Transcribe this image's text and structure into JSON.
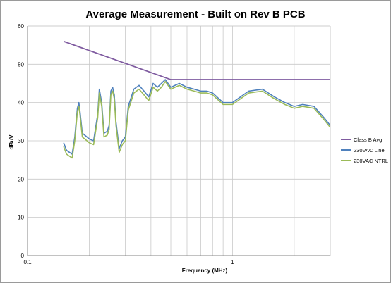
{
  "chart_data": {
    "type": "line",
    "title": "Average Measurement - Built on Rev B PCB",
    "xlabel": "Frequency (MHz)",
    "ylabel": "dBuV",
    "x_scale": "log",
    "xlim": [
      0.1,
      3.0
    ],
    "ylim": [
      0,
      60
    ],
    "x_tick_labels": [
      "0.1",
      "1"
    ],
    "y_tick_labels": [
      "0",
      "10",
      "20",
      "30",
      "40",
      "50",
      "60"
    ],
    "grid": true,
    "legend_position": "right",
    "series": [
      {
        "name": "Class B Avg",
        "color": "#7f5ba0",
        "x": [
          0.15,
          0.5,
          3.0
        ],
        "y": [
          56,
          46,
          46
        ]
      },
      {
        "name": "230VAC Line",
        "color": "#4f81bd",
        "x": [
          0.15,
          0.155,
          0.165,
          0.17,
          0.175,
          0.178,
          0.18,
          0.185,
          0.19,
          0.2,
          0.21,
          0.22,
          0.224,
          0.23,
          0.236,
          0.245,
          0.25,
          0.255,
          0.26,
          0.265,
          0.27,
          0.28,
          0.29,
          0.3,
          0.31,
          0.33,
          0.35,
          0.37,
          0.39,
          0.41,
          0.43,
          0.45,
          0.47,
          0.5,
          0.55,
          0.6,
          0.65,
          0.7,
          0.75,
          0.8,
          0.9,
          1.0,
          1.2,
          1.4,
          1.6,
          1.8,
          2.0,
          2.2,
          2.5,
          2.8,
          3.0
        ],
        "y": [
          29.5,
          27.5,
          26.5,
          31,
          38.5,
          40,
          38,
          32,
          31.5,
          30.5,
          30,
          37,
          43.5,
          40,
          32,
          32.5,
          34,
          43,
          44,
          42,
          35,
          28,
          30,
          31,
          39,
          43.5,
          44.5,
          43,
          41.5,
          45,
          44,
          45,
          46,
          44,
          45,
          44,
          43.5,
          43,
          43,
          42.5,
          40,
          40,
          43,
          43.5,
          41.5,
          40,
          39,
          39.5,
          39,
          36,
          34
        ]
      },
      {
        "name": "230VAC NTRL",
        "color": "#9bbb59",
        "x": [
          0.15,
          0.155,
          0.165,
          0.17,
          0.175,
          0.178,
          0.18,
          0.185,
          0.19,
          0.2,
          0.21,
          0.22,
          0.224,
          0.23,
          0.236,
          0.245,
          0.25,
          0.255,
          0.26,
          0.265,
          0.27,
          0.28,
          0.29,
          0.3,
          0.31,
          0.33,
          0.35,
          0.37,
          0.39,
          0.41,
          0.43,
          0.45,
          0.47,
          0.5,
          0.55,
          0.6,
          0.65,
          0.7,
          0.75,
          0.8,
          0.9,
          1.0,
          1.2,
          1.4,
          1.6,
          1.8,
          2.0,
          2.2,
          2.5,
          2.8,
          3.0
        ],
        "y": [
          28.5,
          26.5,
          25.5,
          30,
          37.5,
          39,
          37,
          31,
          30.5,
          29.5,
          29,
          36,
          42.5,
          39,
          31,
          31.5,
          33,
          42,
          43,
          41,
          34,
          27,
          29,
          30,
          38,
          42.5,
          43.5,
          42,
          40.5,
          44,
          43,
          44,
          45.5,
          43.5,
          44.5,
          43.5,
          43,
          42.5,
          42.5,
          42,
          39.5,
          39.5,
          42.5,
          43,
          41,
          39.5,
          38.5,
          39,
          38.5,
          35.5,
          33.5
        ]
      }
    ]
  }
}
